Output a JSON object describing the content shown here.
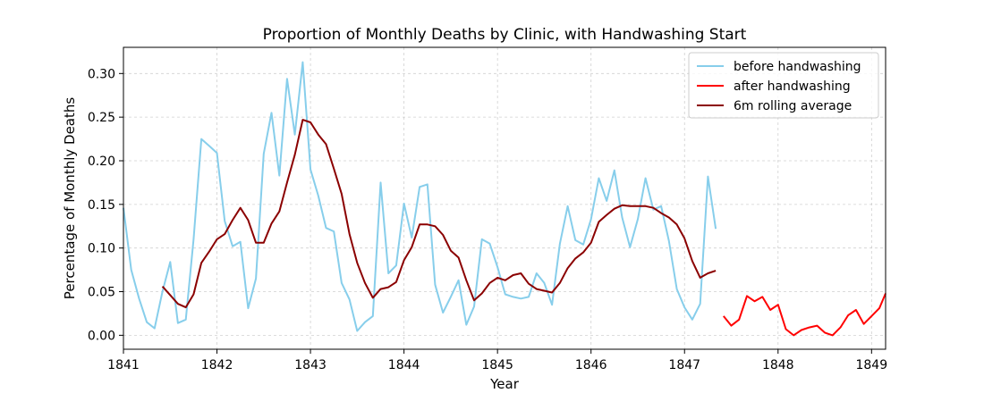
{
  "chart_data": {
    "type": "line",
    "title": "Proportion of Monthly Deaths by Clinic, with Handwashing Start",
    "xlabel": "Year",
    "ylabel": "Percentage of Monthly Deaths",
    "xlim": [
      1841.0,
      1849.15
    ],
    "ylim": [
      -0.016,
      0.33
    ],
    "xticks": [
      1841,
      1842,
      1843,
      1844,
      1845,
      1846,
      1847,
      1848,
      1849
    ],
    "yticks": [
      "0.00",
      "0.05",
      "0.10",
      "0.15",
      "0.20",
      "0.25",
      "0.30"
    ],
    "grid": true,
    "legend_position": "top-right",
    "series": [
      {
        "name": "before handwashing",
        "color": "#87CEEB",
        "x": [
          1841.0,
          1841.083,
          1841.167,
          1841.25,
          1841.333,
          1841.417,
          1841.5,
          1841.583,
          1841.667,
          1841.75,
          1841.833,
          1841.917,
          1842.0,
          1842.083,
          1842.167,
          1842.25,
          1842.333,
          1842.417,
          1842.5,
          1842.583,
          1842.667,
          1842.75,
          1842.833,
          1842.917,
          1843.0,
          1843.083,
          1843.167,
          1843.25,
          1843.333,
          1843.417,
          1843.5,
          1843.583,
          1843.667,
          1843.75,
          1843.833,
          1843.917,
          1844.0,
          1844.083,
          1844.167,
          1844.25,
          1844.333,
          1844.417,
          1844.5,
          1844.583,
          1844.667,
          1844.75,
          1844.833,
          1844.917,
          1845.0,
          1845.083,
          1845.167,
          1845.25,
          1845.333,
          1845.417,
          1845.5,
          1845.583,
          1845.667,
          1845.75,
          1845.833,
          1845.917,
          1846.0,
          1846.083,
          1846.167,
          1846.25,
          1846.333,
          1846.417,
          1846.5,
          1846.583,
          1846.667,
          1846.75,
          1846.833,
          1846.917,
          1847.0,
          1847.083,
          1847.167,
          1847.25,
          1847.333
        ],
        "y": [
          0.146,
          0.075,
          0.042,
          0.015,
          0.008,
          0.05,
          0.084,
          0.014,
          0.018,
          0.11,
          0.225,
          0.217,
          0.209,
          0.131,
          0.102,
          0.107,
          0.031,
          0.065,
          0.208,
          0.255,
          0.183,
          0.294,
          0.23,
          0.313,
          0.19,
          0.16,
          0.123,
          0.119,
          0.06,
          0.041,
          0.005,
          0.015,
          0.022,
          0.175,
          0.071,
          0.08,
          0.151,
          0.112,
          0.17,
          0.173,
          0.058,
          0.026,
          0.044,
          0.063,
          0.012,
          0.033,
          0.11,
          0.105,
          0.078,
          0.047,
          0.044,
          0.042,
          0.044,
          0.071,
          0.06,
          0.035,
          0.105,
          0.148,
          0.109,
          0.104,
          0.133,
          0.18,
          0.154,
          0.189,
          0.135,
          0.101,
          0.133,
          0.18,
          0.144,
          0.148,
          0.108,
          0.053,
          0.032,
          0.018,
          0.036,
          0.182,
          0.122
        ]
      },
      {
        "name": "after handwashing",
        "color": "#FF0000",
        "x": [
          1847.417,
          1847.5,
          1847.583,
          1847.667,
          1847.75,
          1847.833,
          1847.917,
          1848.0,
          1848.083,
          1848.167,
          1848.25,
          1848.333,
          1848.417,
          1848.5,
          1848.583,
          1848.667,
          1848.75,
          1848.833,
          1848.917,
          1849.0,
          1849.083,
          1849.15
        ],
        "y": [
          0.022,
          0.011,
          0.018,
          0.045,
          0.039,
          0.044,
          0.029,
          0.035,
          0.007,
          0.0,
          0.006,
          0.009,
          0.011,
          0.003,
          0.0,
          0.009,
          0.023,
          0.029,
          0.013,
          0.022,
          0.031,
          0.048
        ]
      },
      {
        "name": "6m rolling average",
        "color": "#8B0000",
        "x": [
          1841.417,
          1841.5,
          1841.583,
          1841.667,
          1841.75,
          1841.833,
          1841.917,
          1842.0,
          1842.083,
          1842.167,
          1842.25,
          1842.333,
          1842.417,
          1842.5,
          1842.583,
          1842.667,
          1842.75,
          1842.833,
          1842.917,
          1843.0,
          1843.083,
          1843.167,
          1843.25,
          1843.333,
          1843.417,
          1843.5,
          1843.583,
          1843.667,
          1843.75,
          1843.833,
          1843.917,
          1844.0,
          1844.083,
          1844.167,
          1844.25,
          1844.333,
          1844.417,
          1844.5,
          1844.583,
          1844.667,
          1844.75,
          1844.833,
          1844.917,
          1845.0,
          1845.083,
          1845.167,
          1845.25,
          1845.333,
          1845.417,
          1845.5,
          1845.583,
          1845.667,
          1845.75,
          1845.833,
          1845.917,
          1846.0,
          1846.083,
          1846.167,
          1846.25,
          1846.333,
          1846.417,
          1846.5,
          1846.583,
          1846.667,
          1846.75,
          1846.833,
          1846.917,
          1847.0,
          1847.083,
          1847.167,
          1847.25,
          1847.333
        ],
        "y": [
          0.056,
          0.046,
          0.036,
          0.032,
          0.047,
          0.083,
          0.096,
          0.11,
          0.116,
          0.132,
          0.146,
          0.132,
          0.106,
          0.106,
          0.128,
          0.142,
          0.175,
          0.207,
          0.247,
          0.244,
          0.23,
          0.219,
          0.191,
          0.162,
          0.116,
          0.083,
          0.06,
          0.043,
          0.053,
          0.055,
          0.061,
          0.086,
          0.101,
          0.127,
          0.127,
          0.125,
          0.115,
          0.097,
          0.089,
          0.063,
          0.04,
          0.048,
          0.06,
          0.066,
          0.063,
          0.069,
          0.071,
          0.059,
          0.053,
          0.051,
          0.049,
          0.06,
          0.077,
          0.088,
          0.095,
          0.106,
          0.13,
          0.138,
          0.145,
          0.149,
          0.148,
          0.148,
          0.148,
          0.146,
          0.14,
          0.135,
          0.127,
          0.111,
          0.085,
          0.066,
          0.071,
          0.074
        ]
      }
    ]
  }
}
